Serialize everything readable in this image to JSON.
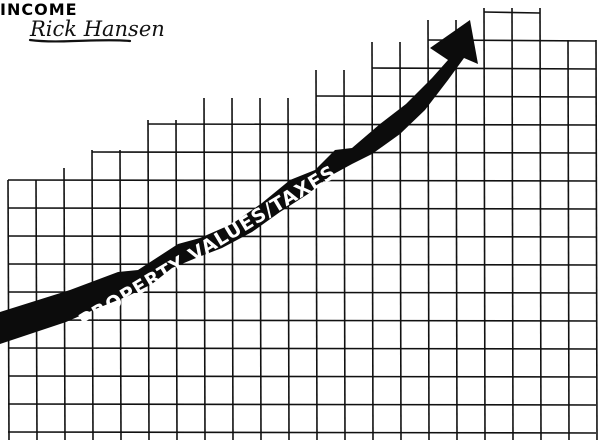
{
  "cartoon": {
    "signature": "Rick Hansen",
    "property_label": "PROPERTY VALUES/TAXES",
    "income_label": "INCOME"
  },
  "colors": {
    "ink": "#111111",
    "paper": "#ffffff"
  },
  "icons": {
    "property_arrow": "up-arrow-icon",
    "income_arrow": "up-arrow-icon"
  }
}
